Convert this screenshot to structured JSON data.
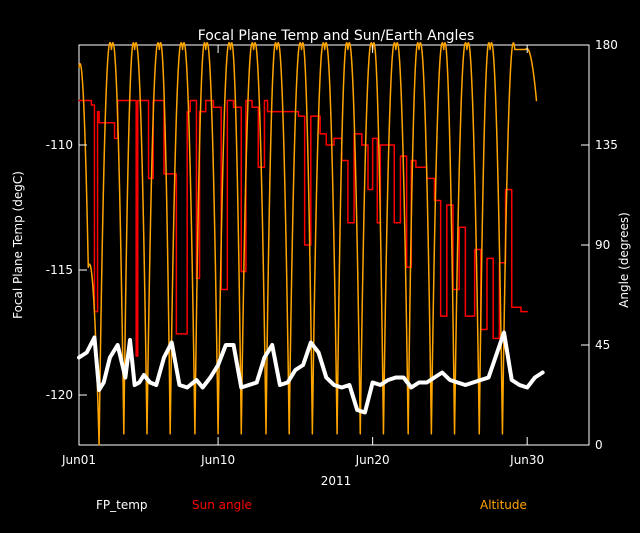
{
  "chart_data": {
    "type": "line",
    "title": "Focal Plane Temp and Sun/Earth Angles",
    "xlabel": "2011",
    "ylabel_left": "Focal Plane Temp (degC)",
    "ylabel_right": "Angle (degrees)",
    "x_ticks": [
      "Jun01",
      "Jun10",
      "Jun20",
      "Jun30"
    ],
    "x_tick_days": [
      1,
      10,
      20,
      30
    ],
    "xlim": [
      1,
      34
    ],
    "ylim_left": [
      -122,
      -106
    ],
    "y_ticks_left": [
      "-110",
      "-115",
      "-120"
    ],
    "y_tick_values_left": [
      -110,
      -115,
      -120
    ],
    "ylim_right": [
      0,
      180
    ],
    "y_ticks_right": [
      "0",
      "45",
      "90",
      "135",
      "180"
    ],
    "y_tick_values_right": [
      0,
      45,
      90,
      135,
      180
    ],
    "colors": {
      "fp_temp": "#ffffff",
      "sun_angle": "#ff0000",
      "altitude": "#ffa500"
    },
    "series": [
      {
        "name": "FP_temp",
        "axis": "left",
        "x": [
          1.0,
          1.5,
          2.0,
          2.3,
          2.6,
          3.0,
          3.5,
          4.0,
          4.3,
          4.6,
          4.9,
          5.2,
          5.6,
          6.0,
          6.5,
          7.0,
          7.5,
          8.0,
          8.6,
          9.0,
          9.5,
          10.0,
          10.5,
          11.0,
          11.5,
          12.0,
          12.5,
          13.0,
          13.5,
          14.0,
          14.5,
          15.0,
          15.5,
          16.0,
          16.5,
          17.0,
          17.5,
          18.0,
          18.5,
          19.0,
          19.5,
          20.0,
          20.5,
          21.0,
          21.5,
          22.0,
          22.5,
          23.0,
          23.5,
          24.0,
          24.5,
          25.0,
          25.5,
          26.0,
          26.5,
          27.0,
          27.5,
          28.0,
          28.5,
          29.0,
          29.5,
          30.0,
          30.5,
          31.0
        ],
        "values": [
          -118.5,
          -118.3,
          -117.7,
          -119.8,
          -119.5,
          -118.5,
          -118.0,
          -119.3,
          -117.8,
          -119.6,
          -119.5,
          -119.2,
          -119.5,
          -119.6,
          -118.5,
          -117.9,
          -119.6,
          -119.7,
          -119.4,
          -119.7,
          -119.3,
          -118.8,
          -118.0,
          -118.0,
          -119.7,
          -119.6,
          -119.5,
          -118.5,
          -118.0,
          -119.6,
          -119.5,
          -119.0,
          -118.8,
          -117.9,
          -118.3,
          -119.3,
          -119.6,
          -119.7,
          -119.6,
          -120.6,
          -120.7,
          -119.5,
          -119.6,
          -119.4,
          -119.3,
          -119.3,
          -119.7,
          -119.5,
          -119.5,
          -119.3,
          -119.1,
          -119.4,
          -119.5,
          -119.6,
          -119.5,
          -119.4,
          -119.3,
          -118.4,
          -117.5,
          -119.4,
          -119.6,
          -119.7,
          -119.3,
          -119.1
        ]
      },
      {
        "name": "Sun angle",
        "axis": "right",
        "x": [
          1.0,
          1.8,
          2.0,
          2.2,
          2.3,
          2.5,
          3.2,
          3.3,
          3.5,
          4.5,
          4.7,
          4.8,
          5.5,
          5.8,
          6.3,
          6.5,
          7.0,
          7.3,
          8.0,
          8.2,
          8.6,
          8.8,
          9.2,
          9.7,
          10.2,
          10.6,
          11.0,
          11.5,
          11.8,
          12.2,
          12.6,
          13.0,
          13.2,
          13.8,
          14.5,
          15.2,
          15.6,
          16.0,
          16.6,
          17.0,
          17.5,
          18.0,
          18.4,
          18.8,
          19.3,
          19.7,
          20.0,
          20.3,
          20.5,
          21.0,
          21.4,
          21.8,
          22.2,
          22.5,
          22.8,
          23.5,
          24.0,
          24.4,
          24.8,
          25.2,
          25.6,
          26.0,
          26.6,
          27.0,
          27.4,
          27.8,
          28.2,
          28.6,
          29.0,
          29.6,
          30.0
        ],
        "values": [
          155,
          153,
          60,
          150,
          145,
          145,
          145,
          138,
          155,
          155,
          40,
          155,
          120,
          155,
          155,
          122,
          122,
          50,
          150,
          155,
          75,
          150,
          155,
          152,
          70,
          155,
          152,
          78,
          155,
          152,
          125,
          155,
          150,
          150,
          150,
          148,
          90,
          148,
          140,
          135,
          138,
          128,
          100,
          140,
          135,
          115,
          138,
          100,
          135,
          135,
          100,
          130,
          80,
          128,
          125,
          120,
          110,
          58,
          108,
          70,
          98,
          58,
          88,
          52,
          84,
          48,
          82,
          115,
          62,
          60,
          60
        ]
      },
      {
        "name": "Altitude",
        "axis": "right",
        "x": [
          1.0,
          1.6,
          2.3,
          3.1,
          3.9,
          4.6,
          5.4,
          6.2,
          6.9,
          7.7,
          8.5,
          9.2,
          10.0,
          10.8,
          11.5,
          12.3,
          13.1,
          13.8,
          14.6,
          15.4,
          16.1,
          16.9,
          17.7,
          18.4,
          19.2,
          20.0,
          20.7,
          21.5,
          22.3,
          23.0,
          23.8,
          24.6,
          25.3,
          26.1,
          26.9,
          27.6,
          28.4,
          29.2,
          29.9,
          30.6
        ],
        "values": [
          170,
          80,
          0,
          178,
          5,
          178,
          5,
          178,
          5,
          178,
          5,
          178,
          5,
          178,
          5,
          178,
          5,
          178,
          5,
          178,
          5,
          178,
          5,
          178,
          5,
          178,
          5,
          178,
          5,
          178,
          5,
          178,
          5,
          178,
          5,
          178,
          5,
          178,
          178,
          155
        ]
      }
    ],
    "legend": {
      "placement": "bottom"
    }
  }
}
